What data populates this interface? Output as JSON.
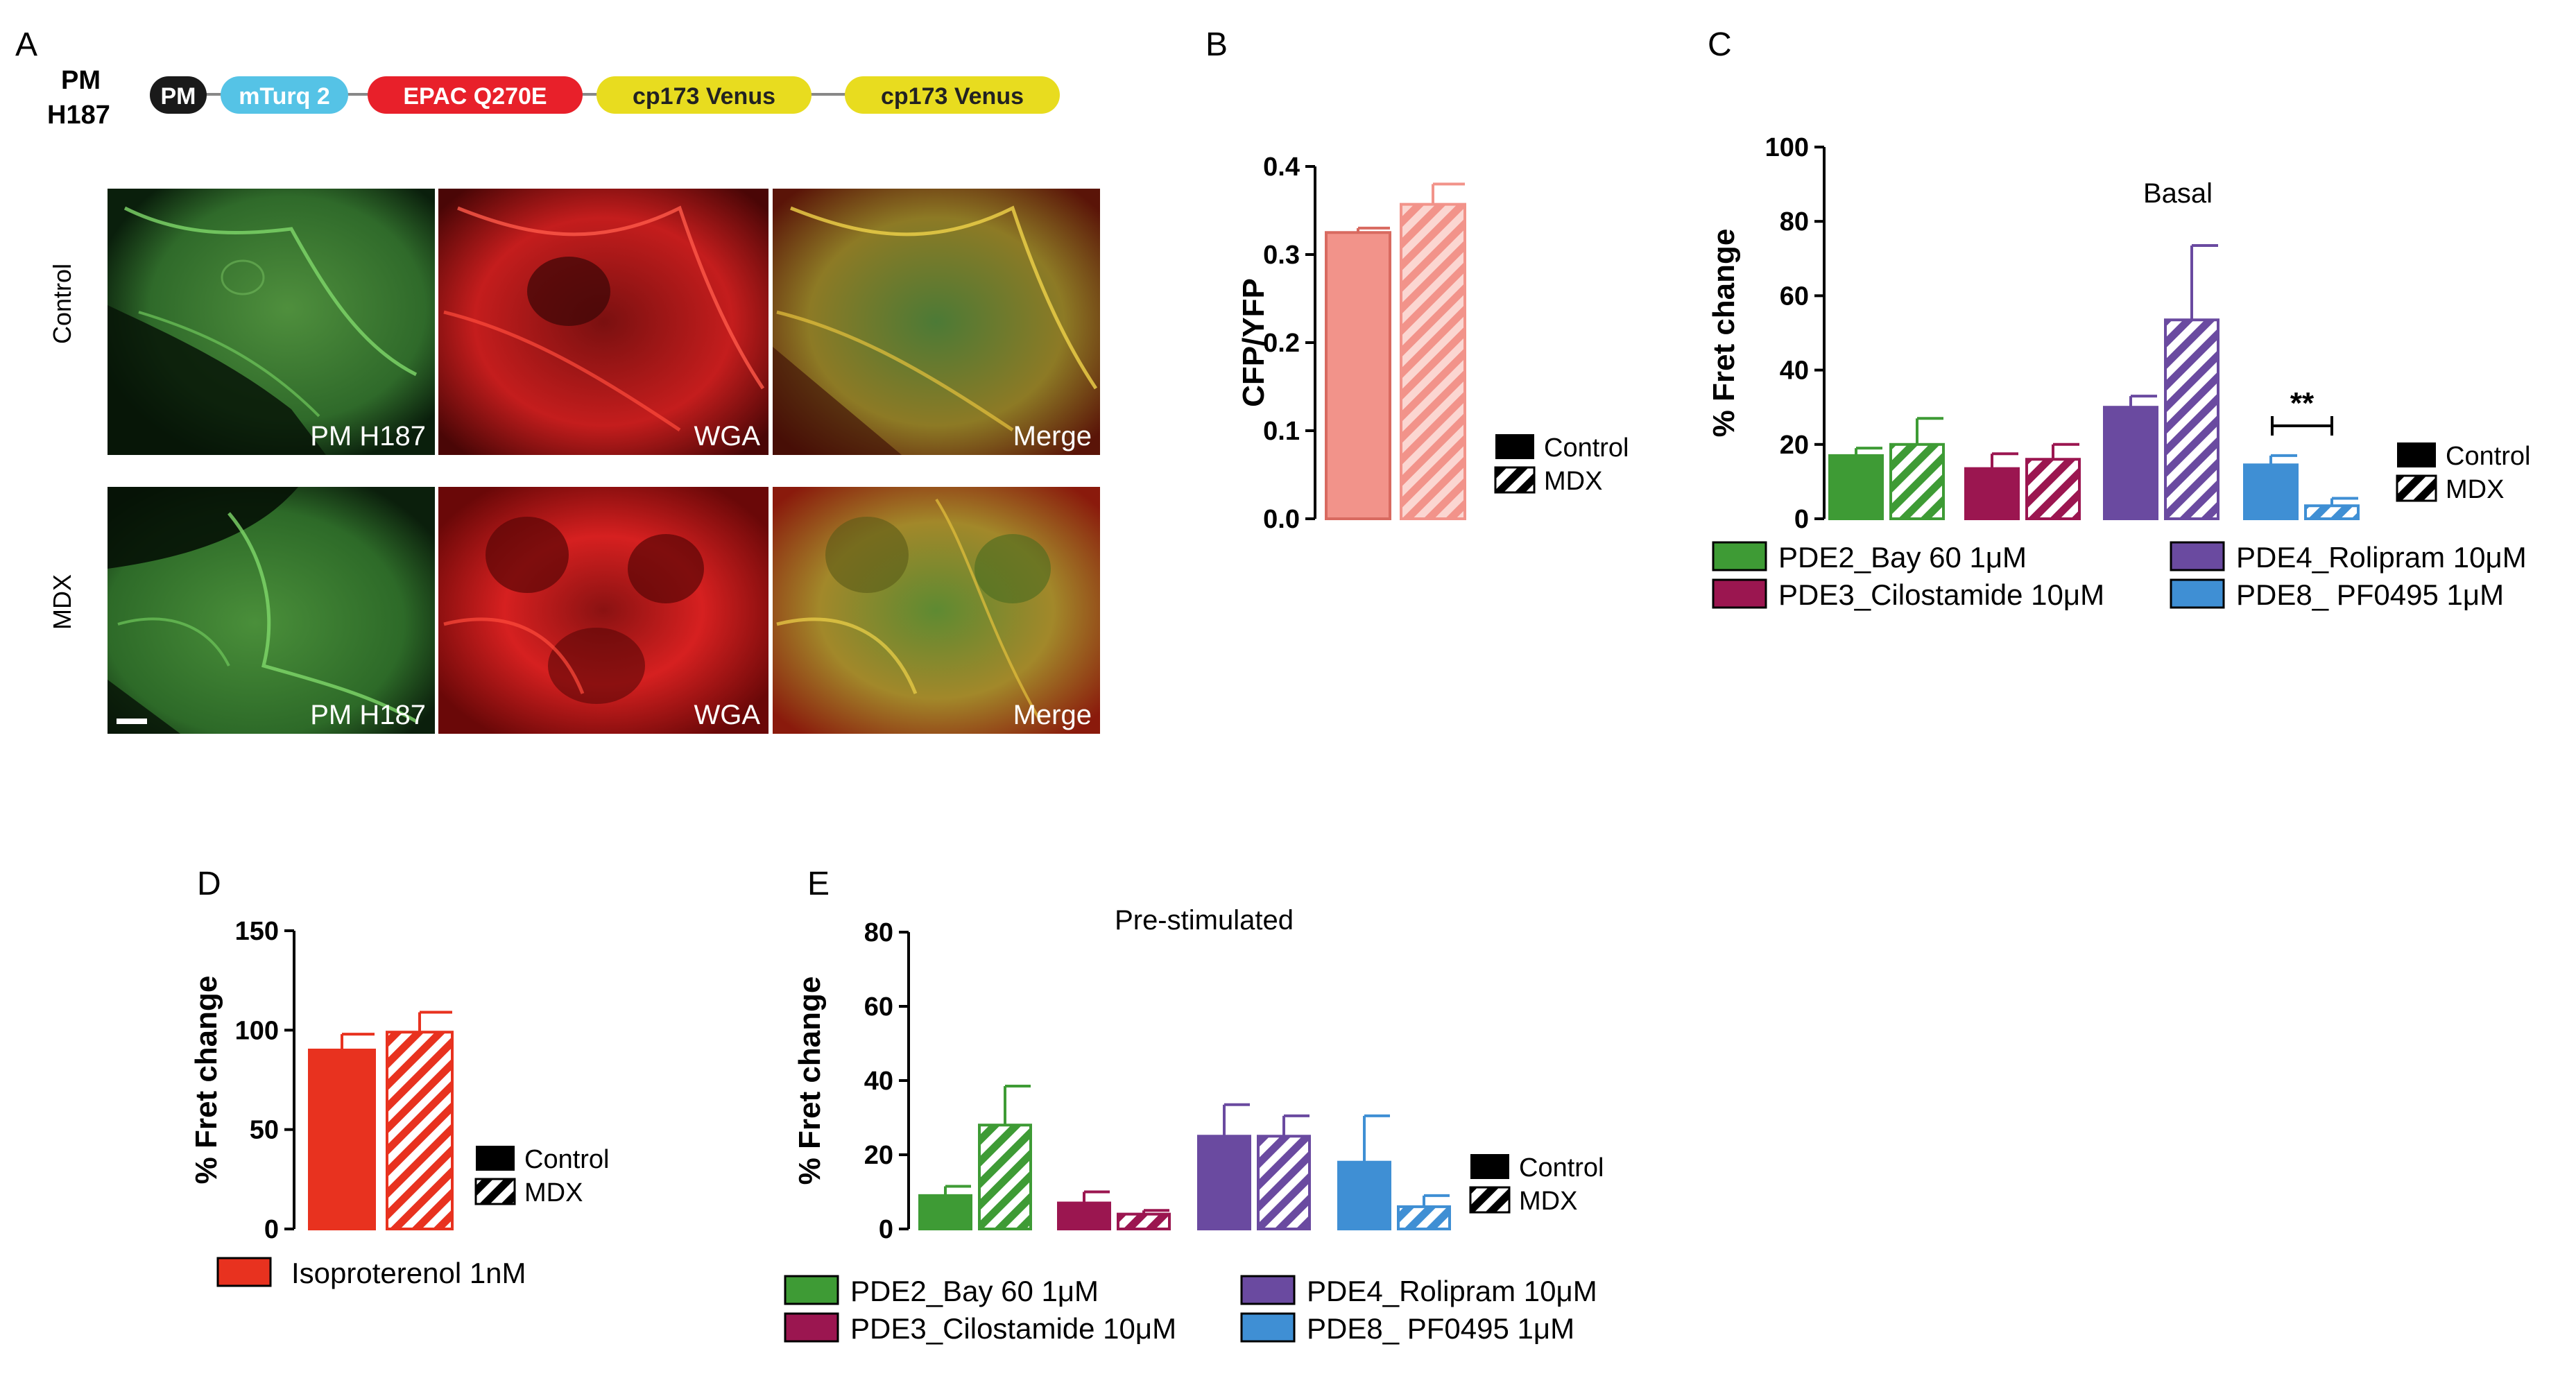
{
  "panel_letters": {
    "a": "A",
    "b": "B",
    "c": "C",
    "d": "D",
    "e": "E"
  },
  "construct": {
    "label_line1": "PM",
    "label_line2": "H187",
    "blocks": [
      "PM",
      "mTurq 2",
      "EPAC Q270E",
      "cp173 Venus",
      "cp173 Venus"
    ],
    "colors": [
      "#1a1a1a",
      "#55c3e6",
      "#e8202a",
      "#e8dc1f",
      "#e8dc1f"
    ]
  },
  "micrographs": {
    "rows": [
      "Control",
      "MDX"
    ],
    "columns": [
      "PM H187",
      "WGA",
      "Merge"
    ]
  },
  "legend_condition": {
    "control": "Control",
    "mdx": "MDX"
  },
  "colors": {
    "pde2": "#3e9b35",
    "pde3": "#9b1650",
    "pde4": "#6a4aa0",
    "pde8": "#3f8fd4",
    "iso": "#e8321f",
    "ratio": "#f2938a",
    "black": "#000000"
  },
  "significance": "**",
  "chart_data": [
    {
      "id": "B",
      "type": "bar",
      "ylabel": "CFP/YFP",
      "ylim": [
        0,
        0.4
      ],
      "yticks": [
        "0.0",
        "0.1",
        "0.2",
        "0.3",
        "0.4"
      ],
      "bars": [
        {
          "condition": "Control",
          "value": 0.325,
          "error": 0.005
        },
        {
          "condition": "MDX",
          "value": 0.357,
          "error": 0.023
        }
      ],
      "legend": [
        "Control",
        "MDX"
      ]
    },
    {
      "id": "C",
      "type": "bar",
      "title": "Basal",
      "ylabel": "% Fret change",
      "ylim": [
        0,
        100
      ],
      "yticks": [
        "0",
        "20",
        "40",
        "60",
        "80",
        "100"
      ],
      "categories": [
        "PDE2_Bay 60 1μM",
        "PDE3_Cilostamide 10μM",
        "PDE4_Rolipram 10μM",
        "PDE8_ PF0495 1μM"
      ],
      "series": [
        {
          "name": "Control",
          "values": [
            17,
            13.5,
            30,
            14.5
          ],
          "errors": [
            2,
            4,
            3,
            2.5
          ]
        },
        {
          "name": "MDX",
          "values": [
            20,
            16,
            53.5,
            3.5
          ],
          "errors": [
            7,
            4,
            20,
            2
          ]
        }
      ],
      "annotation": {
        "text": "**",
        "category_index": 3
      }
    },
    {
      "id": "D",
      "type": "bar",
      "ylabel": "% Fret change",
      "ylim": [
        0,
        150
      ],
      "yticks": [
        "0",
        "50",
        "100",
        "150"
      ],
      "categories": [
        "Isoproterenol 1nM"
      ],
      "series": [
        {
          "name": "Control",
          "values": [
            90
          ],
          "errors": [
            8
          ]
        },
        {
          "name": "MDX",
          "values": [
            99
          ],
          "errors": [
            10
          ]
        }
      ]
    },
    {
      "id": "E",
      "type": "bar",
      "title": "Pre-stimulated",
      "ylabel": "% Fret change",
      "ylim": [
        0,
        80
      ],
      "yticks": [
        "0",
        "20",
        "40",
        "60",
        "80"
      ],
      "categories": [
        "PDE2_Bay 60 1μM",
        "PDE3_Cilostamide 10μM",
        "PDE4_Rolipram 10μM",
        "PDE8_ PF0495 1μM"
      ],
      "series": [
        {
          "name": "Control",
          "values": [
            9,
            7,
            25,
            18
          ],
          "errors": [
            2.5,
            3,
            8.5,
            12.5
          ]
        },
        {
          "name": "MDX",
          "values": [
            28,
            4,
            25,
            6
          ],
          "errors": [
            10.5,
            1,
            5.5,
            3
          ]
        }
      ]
    }
  ]
}
